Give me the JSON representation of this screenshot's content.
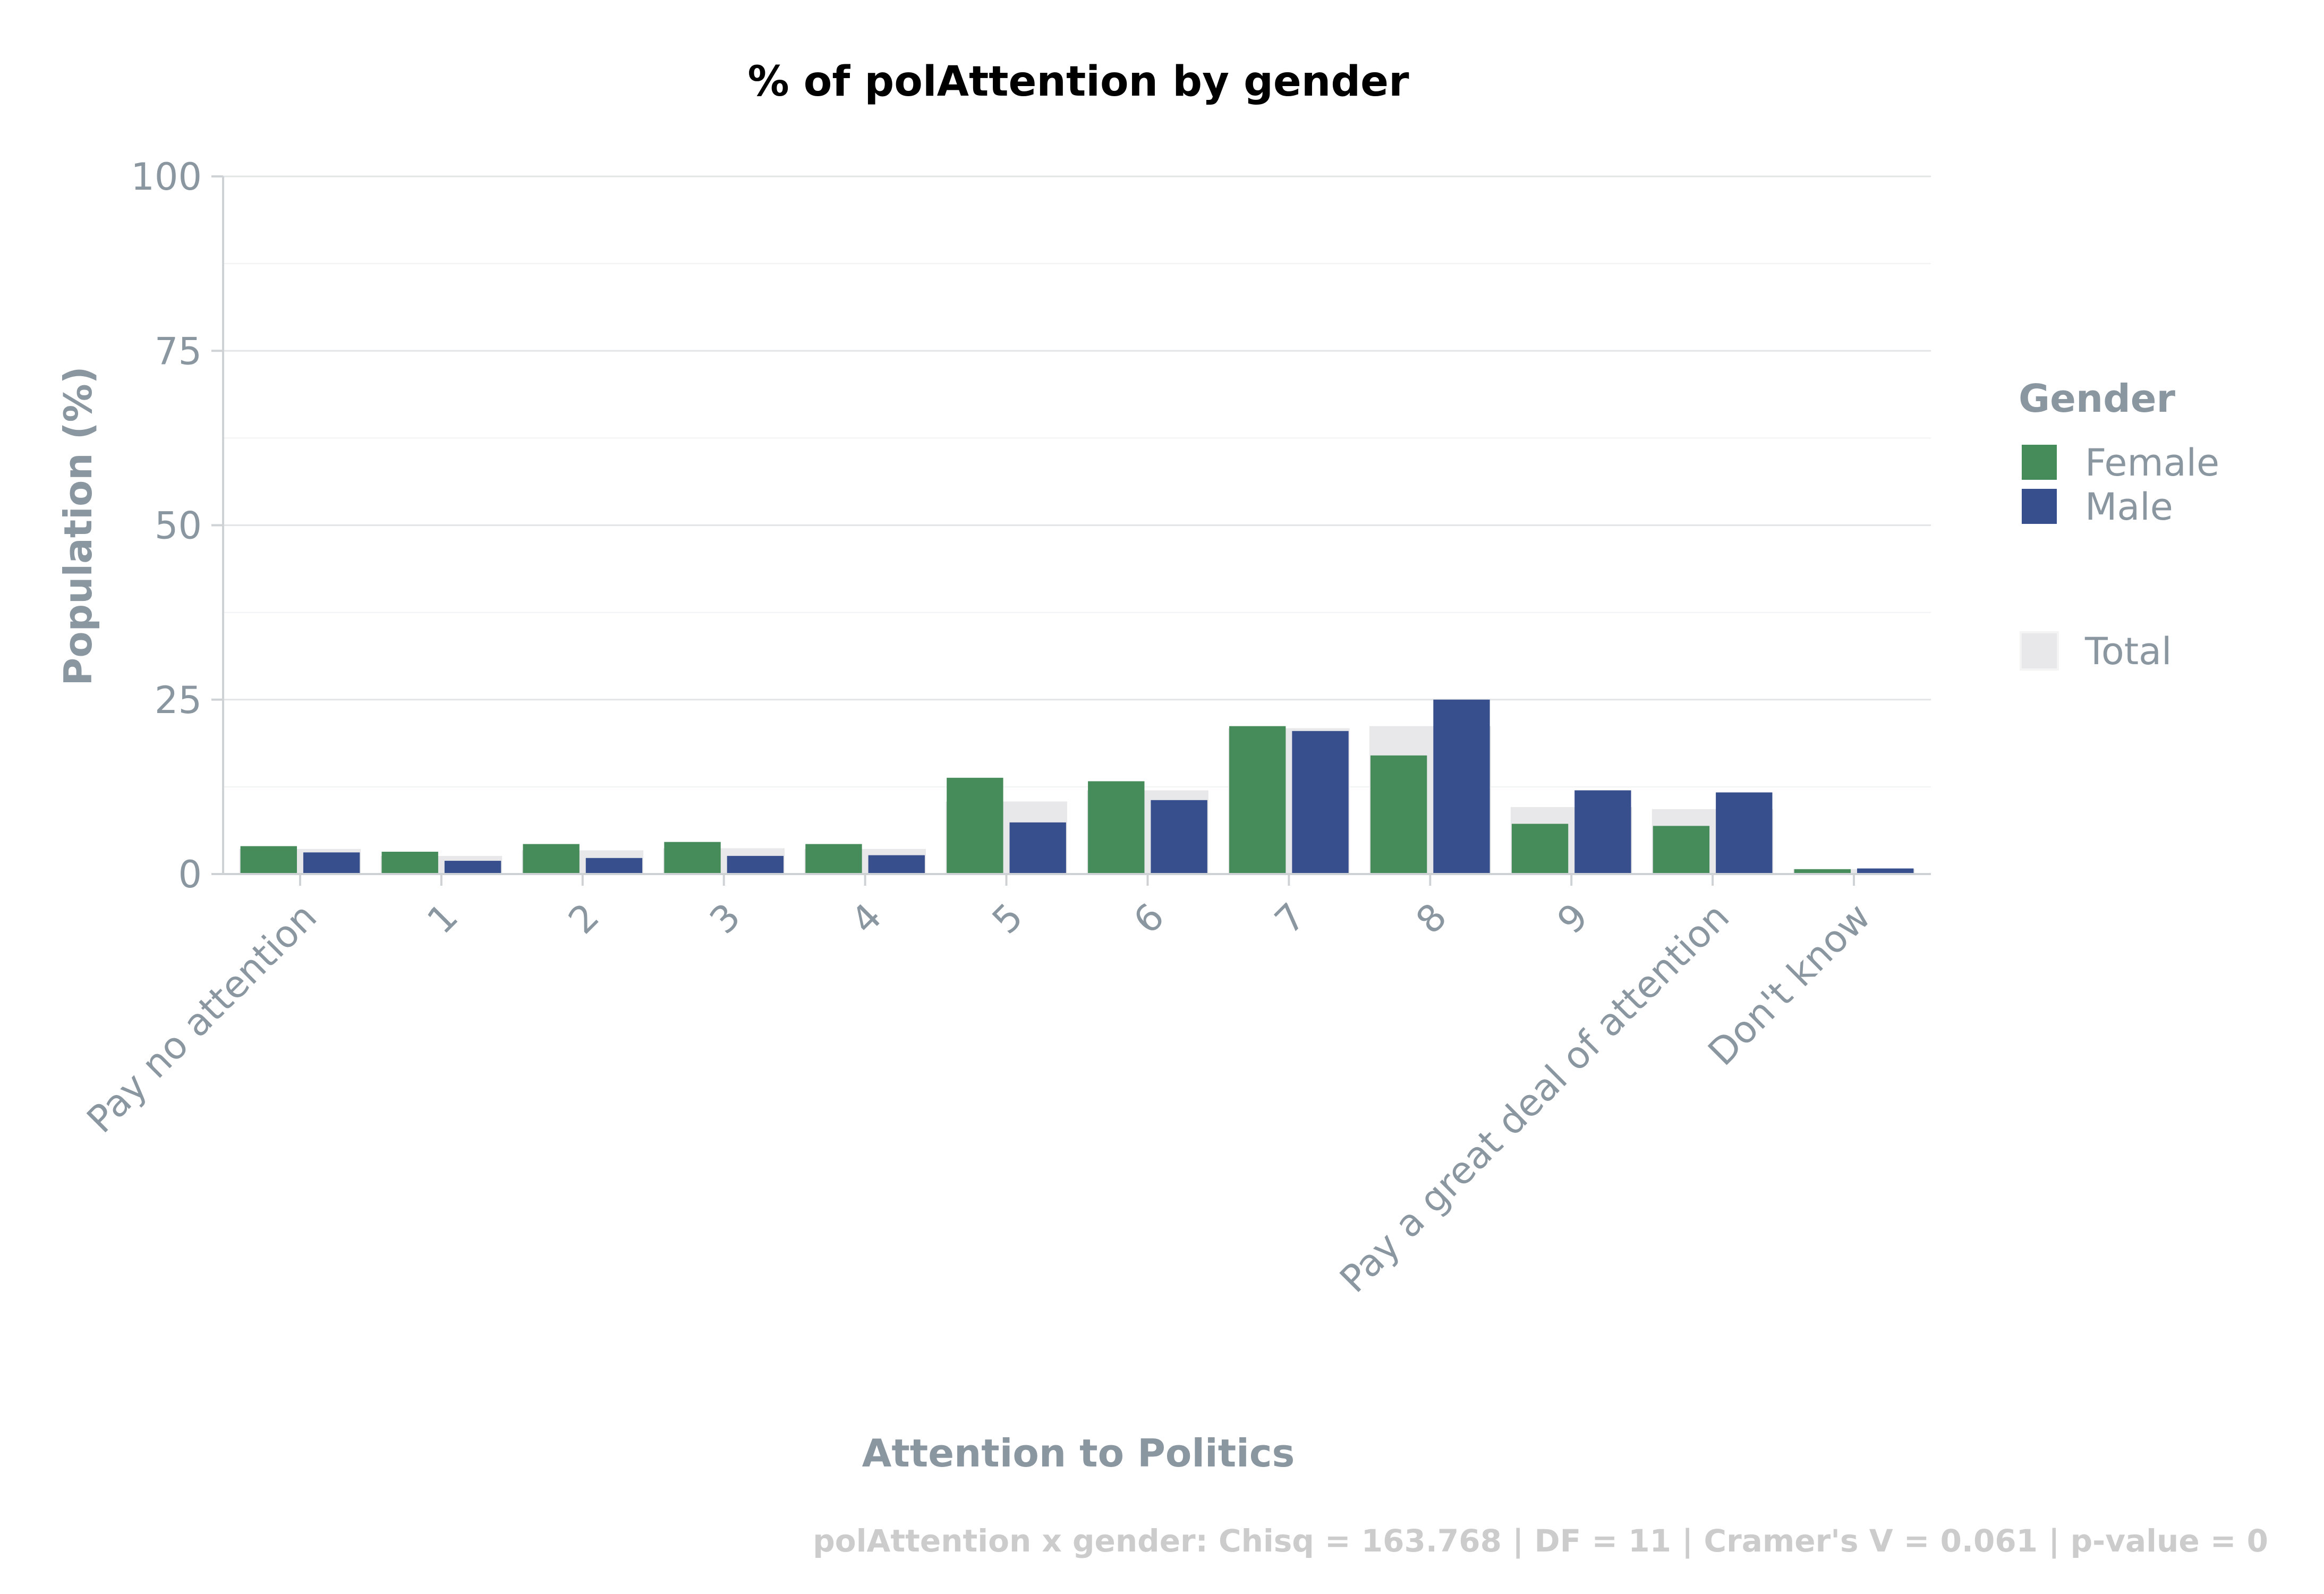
{
  "chart_data": {
    "type": "bar",
    "title": "% of polAttention by gender",
    "xlabel": "Attention to Politics",
    "ylabel": "Population (%)",
    "ylim": [
      0,
      100
    ],
    "yticks": [
      0,
      25,
      50,
      75,
      100
    ],
    "grid": true,
    "categories": [
      "Pay no attention",
      "1",
      "2",
      "3",
      "4",
      "5",
      "6",
      "7",
      "8",
      "9",
      "Pay a great deal of attention",
      "Don't know"
    ],
    "series": [
      {
        "name": "Female",
        "color": "#468b5a",
        "values": [
          4.0,
          3.2,
          4.3,
          4.6,
          4.3,
          13.8,
          13.3,
          21.2,
          17.0,
          7.2,
          6.9,
          0.7
        ]
      },
      {
        "name": "Male",
        "color": "#374f8c",
        "values": [
          3.1,
          1.9,
          2.3,
          2.6,
          2.7,
          7.4,
          10.6,
          20.5,
          25.0,
          12.0,
          11.7,
          0.8
        ]
      }
    ],
    "total": {
      "name": "Total",
      "color": "#e8e8ea",
      "values": [
        3.6,
        2.6,
        3.4,
        3.7,
        3.6,
        10.4,
        12.0,
        20.9,
        21.2,
        9.6,
        9.3,
        0.7
      ]
    },
    "legend": {
      "title": "Gender",
      "placement": "right"
    },
    "footnote": "polAttention x gender: Chisq = 163.768 | DF = 11 | Cramer's V = 0.061 | p-value = 0"
  }
}
